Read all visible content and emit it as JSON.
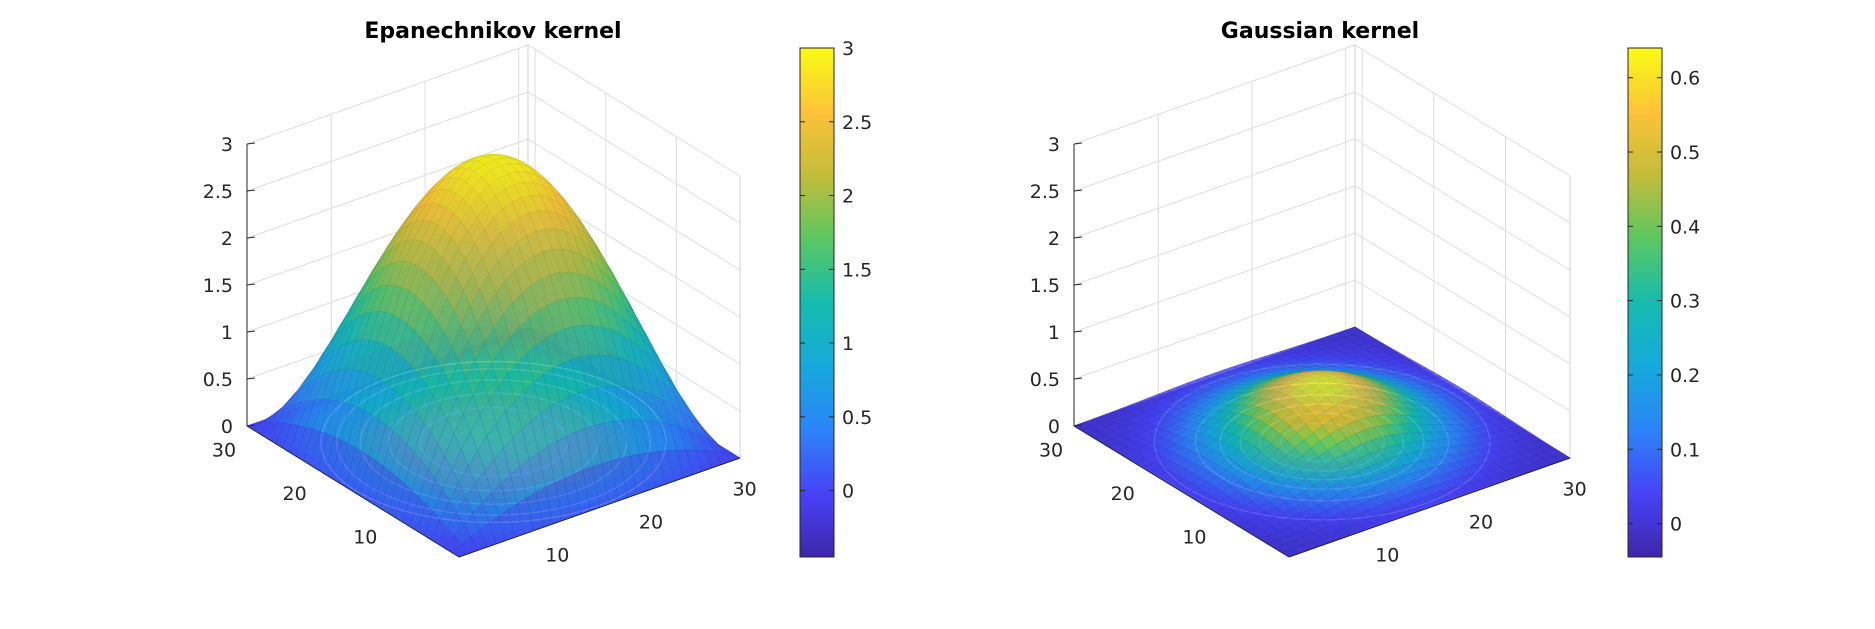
{
  "chart_data": [
    {
      "type": "surface",
      "title": "Epanechnikov kernel",
      "kernel": "epanechnikov",
      "grid_size": 31,
      "x_ticks": [
        10,
        20,
        30
      ],
      "y_ticks": [
        10,
        20,
        30
      ],
      "z_ticks": [
        "0",
        "0.5",
        "1",
        "1.5",
        "2",
        "2.5",
        "3"
      ],
      "z_values": [
        0,
        0.5,
        1,
        1.5,
        2,
        2.5,
        3
      ],
      "zlim": [
        0,
        3
      ],
      "peak": 3.0,
      "colorbar": {
        "ticks": [
          "0",
          "0.5",
          "1",
          "1.5",
          "2",
          "2.5",
          "3"
        ],
        "values": [
          0,
          0.5,
          1,
          1.5,
          2,
          2.5,
          3
        ],
        "range": [
          -0.45,
          3.0
        ]
      },
      "contour_floor": true,
      "grid": true,
      "colormap": "parula"
    },
    {
      "type": "surface",
      "title": "Gaussian kernel",
      "kernel": "gaussian",
      "grid_size": 31,
      "x_ticks": [
        10,
        20,
        30
      ],
      "y_ticks": [
        10,
        20,
        30
      ],
      "z_ticks": [
        "0",
        "0.5",
        "1",
        "1.5",
        "2",
        "2.5",
        "3"
      ],
      "z_values": [
        0,
        0.5,
        1,
        1.5,
        2,
        2.5,
        3
      ],
      "zlim": [
        0,
        3
      ],
      "peak": 0.64,
      "colorbar": {
        "ticks": [
          "0",
          "0.1",
          "0.2",
          "0.3",
          "0.4",
          "0.5",
          "0.6"
        ],
        "values": [
          0,
          0.1,
          0.2,
          0.3,
          0.4,
          0.5,
          0.6
        ],
        "range": [
          -0.045,
          0.64
        ]
      },
      "contour_floor": true,
      "grid": true,
      "colormap": "parula"
    }
  ]
}
